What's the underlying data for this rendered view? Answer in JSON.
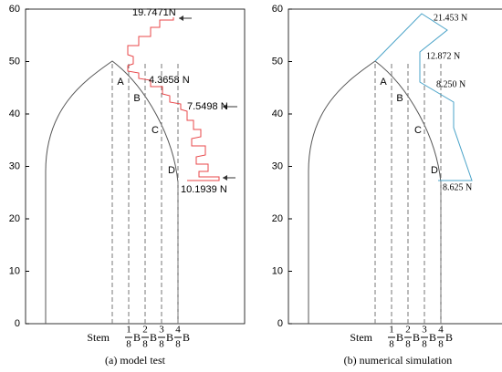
{
  "chart_data": [
    {
      "type": "line",
      "caption": "(a) model test",
      "ylim": [
        0,
        60
      ],
      "yticks": [
        0,
        10,
        20,
        30,
        40,
        50,
        60
      ],
      "station_labels": [
        "A",
        "B",
        "C",
        "D"
      ],
      "x_labels": [
        "Stem",
        {
          "num": "1",
          "den": "8",
          "unit": "B"
        },
        {
          "num": "2",
          "den": "8",
          "unit": "B"
        },
        {
          "num": "3",
          "den": "8",
          "unit": "B"
        },
        {
          "num": "4",
          "den": "8",
          "unit": "B"
        }
      ],
      "annotations": [
        "19.7471N",
        "4.3658 N",
        "7.5498 N",
        "10.1939 N"
      ],
      "color": "#e8474a"
    },
    {
      "type": "line",
      "caption": "(b) numerical simulation",
      "ylim": [
        0,
        60
      ],
      "yticks": [
        0,
        10,
        20,
        30,
        40,
        50,
        60
      ],
      "station_labels": [
        "A",
        "B",
        "C",
        "D"
      ],
      "x_labels": [
        "Stem",
        {
          "num": "1",
          "den": "8",
          "unit": "B"
        },
        {
          "num": "2",
          "den": "8",
          "unit": "B"
        },
        {
          "num": "3",
          "den": "8",
          "unit": "B"
        },
        {
          "num": "4",
          "den": "8",
          "unit": "B"
        }
      ],
      "annotations": [
        "21.453 N",
        "12.872 N",
        "8.250 N",
        "8.625 N"
      ],
      "color": "#4aa3c8"
    }
  ]
}
